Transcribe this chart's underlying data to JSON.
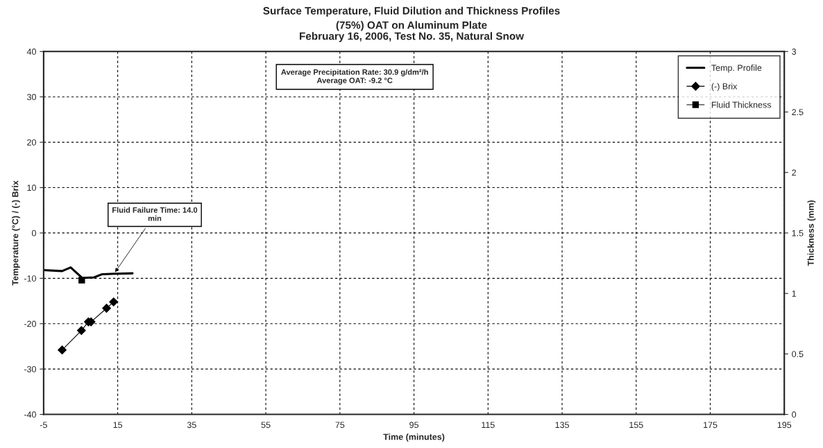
{
  "chart_data": {
    "type": "line",
    "title": "Surface Temperature, Fluid Dilution and Thickness Profiles",
    "subtitle": "(75%) OAT on Aluminum Plate\nFebruary 16, 2006, Test No. 35, Natural Snow",
    "xlabel": "Time (minutes)",
    "ylabel": "Temperature (°C) / (-) Brix",
    "y2label": "Thickness (mm)",
    "series": [
      {
        "name": "Temp. Profile",
        "color": "#000000",
        "marker": "none",
        "x": [
          -5,
          0,
          2.3,
          5.4,
          8.6,
          10.8,
          14,
          19
        ],
        "values": [
          -8.2,
          -8.4,
          -7.6,
          -9.9,
          -9.8,
          -9.1,
          -9.0,
          -8.9
        ]
      },
      {
        "name": "(-) Brix",
        "color": "#000000",
        "marker": "diamond",
        "x": [
          0,
          5.2,
          7.1,
          7.8,
          12,
          13.9
        ],
        "values": [
          -25.8,
          -21.5,
          -19.6,
          -19.6,
          -16.6,
          -15.2
        ]
      },
      {
        "name": "Fluid Thickness",
        "color": "#000000",
        "marker": "square",
        "axis": "y2",
        "x": [
          5.3
        ],
        "values": [
          1.11
        ]
      }
    ],
    "xlim": [
      -5,
      195
    ],
    "xticks": [
      -5,
      15,
      35,
      55,
      75,
      95,
      115,
      135,
      155,
      175,
      195
    ],
    "ylim": [
      -40,
      40
    ],
    "yticks": [
      -40,
      -30,
      -20,
      -10,
      0,
      10,
      20,
      30,
      40
    ],
    "y2lim": [
      0,
      3
    ],
    "y2ticks": [
      0,
      0.5,
      1,
      1.5,
      2,
      2.5,
      3
    ],
    "annotations": [
      "Average Precipitation Rate: 30.9 g/dm²/h\nAverage OAT: -9.2 °C",
      {
        "text": "Fluid Failure Time: 14.0\nmin",
        "x": 14,
        "y": -9.0
      }
    ],
    "grid": true,
    "legend": "top right",
    "line_style": "solid"
  }
}
